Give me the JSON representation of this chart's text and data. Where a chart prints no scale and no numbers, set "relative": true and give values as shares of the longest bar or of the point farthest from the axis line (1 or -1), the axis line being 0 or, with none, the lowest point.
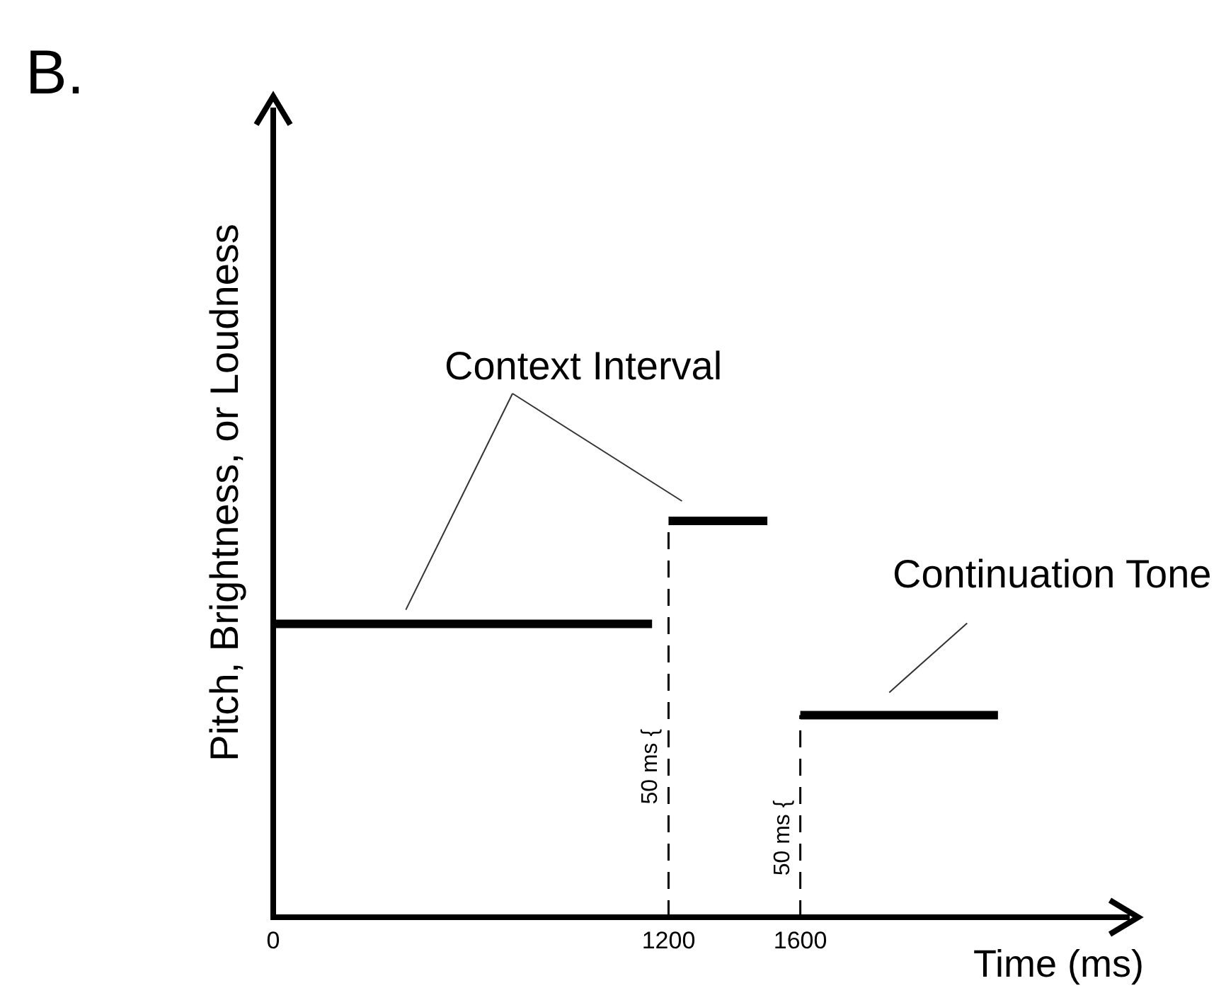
{
  "chart_data": {
    "type": "line",
    "title": "B.",
    "xlabel": "Time (ms)",
    "ylabel": "Pitch, Brightness, or Loudness",
    "relative": true,
    "x": [
      0,
      1150,
      1175,
      1200,
      1500,
      1550,
      1600,
      2200
    ],
    "series": [
      {
        "color": "#000000",
        "values": [
          0.74,
          0.74,
          null,
          1,
          1,
          null,
          0.51,
          0.51
        ]
      }
    ],
    "xlim": [
      0,
      2600
    ],
    "xticks": [
      0,
      1200,
      1600
    ],
    "tick_labels": "x",
    "grid": false,
    "marker": "none",
    "line_style": "solid",
    "ref_lines": [
      {
        "axis": "x",
        "value": 1200,
        "color": "#000000",
        "line_style": "dashed"
      },
      {
        "axis": "x",
        "value": 1600,
        "color": "#000000",
        "line_style": "dashed"
      }
    ],
    "annotations": [
      "Context Interval",
      "Continuation Tone",
      "50 ms {",
      "50 ms {"
    ]
  }
}
